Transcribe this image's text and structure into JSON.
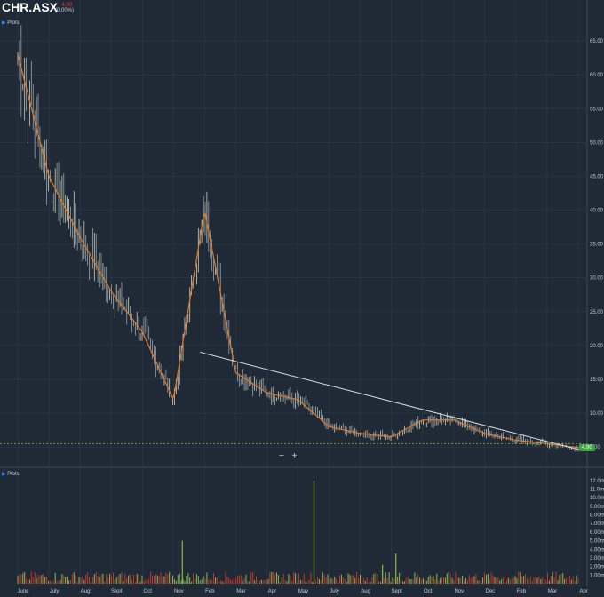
{
  "header": {
    "ticker": "CHR.ASX",
    "price": "4.90",
    "change": "(0.00%)",
    "plots_label": "Plots",
    "volume_plots_label": "Plots"
  },
  "controls": {
    "zoom_out": "−",
    "zoom_in": "+"
  },
  "current_price_badge": "4.90",
  "colors": {
    "background": "#1f2a36",
    "grid": "#2c3a48",
    "up": "#8fb84f",
    "down": "#c0392b",
    "ma_line": "#e07b2a",
    "trendline": "#d9dde2",
    "price_line": "#9acd32"
  },
  "chart_data": [
    {
      "type": "line",
      "title": "",
      "x": [
        "June",
        "July",
        "Aug",
        "Sept",
        "Oct",
        "Nov",
        "Feb",
        "Mar",
        "Apr",
        "May",
        "July",
        "Aug",
        "Sept",
        "Oct",
        "Nov",
        "Dec",
        "Feb",
        "Mar",
        "Apr"
      ],
      "series": [
        {
          "values": [
            63,
            45,
            36,
            28,
            22,
            12,
            40,
            16,
            13,
            12,
            8,
            7,
            6.5,
            9,
            9,
            7,
            6,
            5.5,
            4.9
          ]
        }
      ],
      "y_ticks": [
        "65.00",
        "60.00",
        "55.00",
        "50.00",
        "45.00",
        "40.00",
        "35.00",
        "30.00",
        "25.00",
        "20.00",
        "15.00",
        "10.00",
        "5.00"
      ],
      "ylim": [
        2,
        70
      ],
      "annotations": [
        "descending trendline",
        "current price 4.90"
      ]
    },
    {
      "type": "bar",
      "title": "",
      "y_ticks": [
        "12.0m",
        "11.0m",
        "10.0m",
        "9.00m",
        "8.00m",
        "7.00m",
        "6.00m",
        "5.00m",
        "4.00m",
        "3.00m",
        "2.00m",
        "1.00m"
      ],
      "ylim": [
        0,
        12.5
      ],
      "peaks": [
        {
          "month": "Nov",
          "value": 5.0
        },
        {
          "month": "May",
          "value": 12.0
        },
        {
          "month": "Sept",
          "value": 2.2
        },
        {
          "month": "Oct",
          "value": 3.5
        }
      ]
    }
  ]
}
